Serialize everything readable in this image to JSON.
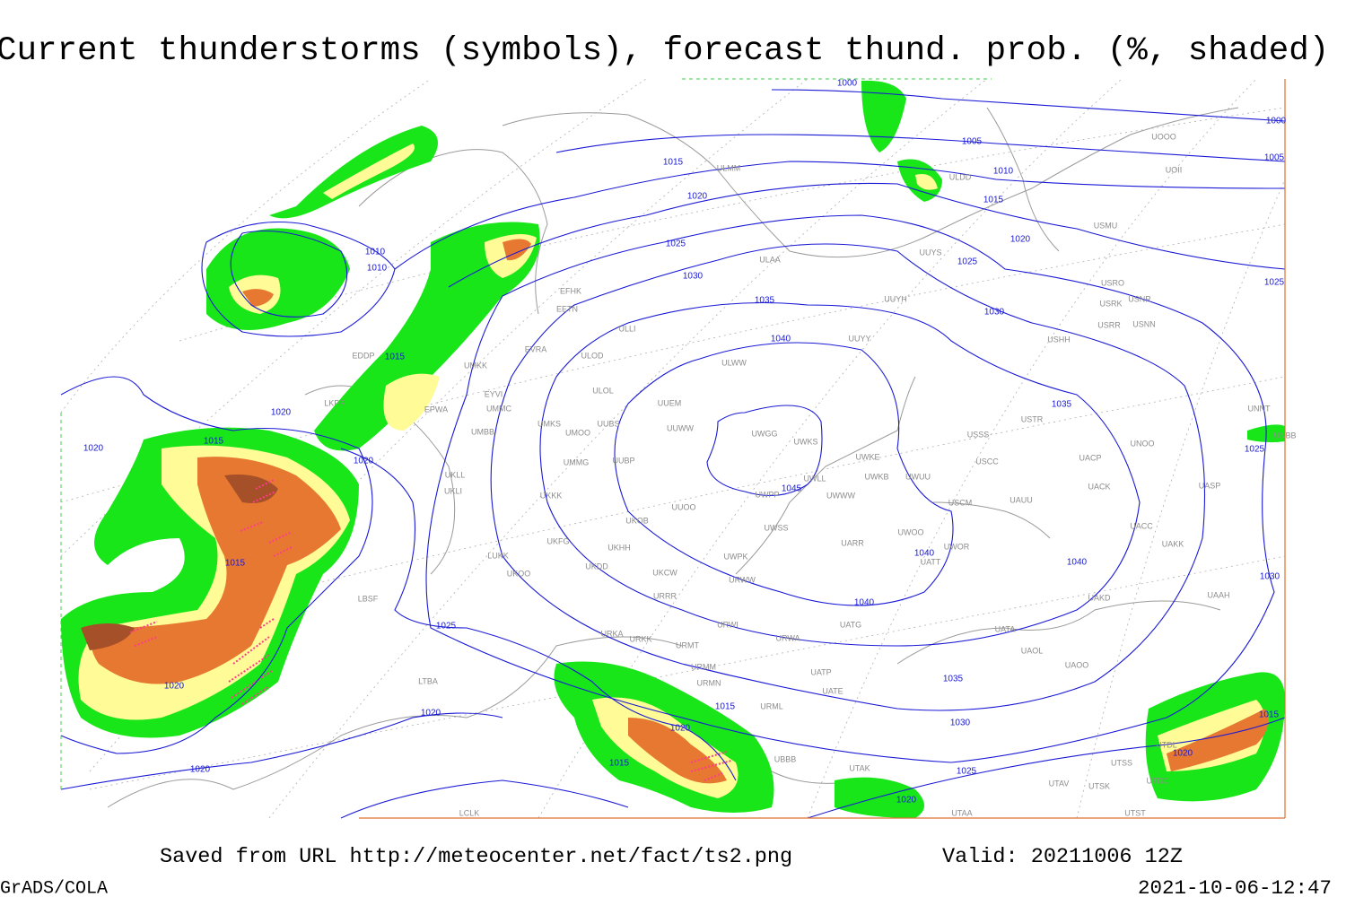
{
  "title": "Current thunderstorms (symbols), forecast thund. prob. (%, shaded)",
  "footer": {
    "source": "Saved from URL http://meteocenter.net/fact/ts2.png",
    "valid": "Valid: 20211006 12Z",
    "software": "GrADS/COLA",
    "timestamp": "2021-10-06-12:47"
  },
  "isobar_labels": [
    "1045",
    "1040",
    "1040",
    "1040",
    "1040",
    "1035",
    "1035",
    "1035",
    "1030",
    "1030",
    "1030",
    "1030",
    "1025",
    "1025",
    "1025",
    "1025",
    "1025",
    "1025",
    "1020",
    "1020",
    "1020",
    "1020",
    "1020",
    "1020",
    "1020",
    "1020",
    "1020",
    "1020",
    "1020",
    "1015",
    "1015",
    "1015",
    "1015",
    "1015",
    "1015",
    "1015",
    "1015",
    "1010",
    "1010",
    "1010",
    "1005",
    "1005",
    "1000",
    "1000"
  ],
  "stations": [
    "ULAA",
    "UUYH",
    "UUYY",
    "ULWW",
    "UUEM",
    "UWGG",
    "UWKS",
    "UWKE",
    "UUWW",
    "USSS",
    "USTR",
    "UNOO",
    "USCC",
    "UACP",
    "UACK",
    "UASP",
    "UWPP",
    "UWWW",
    "UWLL",
    "UWKB",
    "UWUU",
    "USCM",
    "UAUU",
    "UACC",
    "UAKK",
    "UWSS",
    "UARR",
    "UWOO",
    "UWOR",
    "UATT",
    "UAKD",
    "UAAH",
    "UWPK",
    "UUOO",
    "ULOL",
    "UMMG",
    "UUBP",
    "UMOO",
    "UUBS",
    "UMKS",
    "UMMC",
    "UMBB",
    "UKLL",
    "UKLI",
    "UKKK",
    "UKOB",
    "UKFG",
    "UKDD",
    "UKHH",
    "UKCW",
    "URRR",
    "URWW",
    "URWI",
    "URWA",
    "UATG",
    "UATA",
    "UAOL",
    "UAOO",
    "UATP",
    "UATE",
    "URMT",
    "URMM",
    "URMN",
    "URML",
    "LBSF",
    "LTBA",
    "ULLI",
    "ULOD",
    "EVRA",
    "EFHK",
    "EETN",
    "EYVI",
    "UMKK",
    "EPWA",
    "EDDP",
    "LKPR",
    "UKOO",
    "LUKK",
    "ULDD",
    "USMU",
    "ULMM",
    "UOOO",
    "UOII",
    "USRO",
    "USNR",
    "USRK",
    "USRR",
    "USNN",
    "USHH",
    "UNNT",
    "UNBB",
    "UTAA",
    "UBBB",
    "UTAK",
    "UTAV",
    "UTSK",
    "UTDD",
    "UTST",
    "UTDL",
    "UTSS",
    "LCLK",
    "UUYS",
    "URKK",
    "URKA"
  ]
}
